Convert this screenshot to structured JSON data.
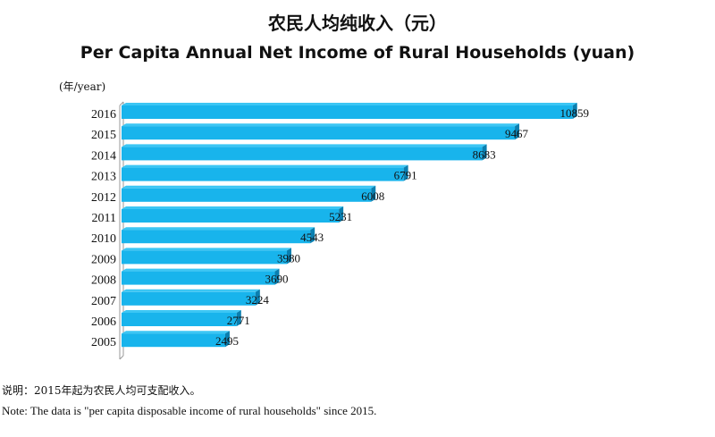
{
  "title_cn": "农民人均纯收入（元）",
  "title_en": "Per Capita Annual Net Income of Rural Households (yuan)",
  "unit_label": "(年/year)",
  "note_cn": "说明：2015年起为农民人均可支配收入。",
  "note_en": "Note: The data is \"per capita disposable income of rural  households\" since 2015.",
  "colors": {
    "bar": "#18b4ec",
    "bar_top": "#3cc6f4",
    "bar_dark": "#0a7fb0",
    "axis": "#999999"
  },
  "chart_data": {
    "type": "bar",
    "orientation": "horizontal",
    "categories": [
      "2016",
      "2015",
      "2014",
      "2013",
      "2012",
      "2011",
      "2010",
      "2009",
      "2008",
      "2007",
      "2006",
      "2005"
    ],
    "values": [
      10859,
      9467,
      8683,
      6791,
      6008,
      5231,
      4543,
      3980,
      3690,
      3224,
      2771,
      2495
    ],
    "title": "Per Capita Annual Net Income of Rural Households (yuan)",
    "ylabel": "(年/year)",
    "xlim": [
      0,
      11000
    ],
    "grid": false,
    "legend": "none"
  }
}
